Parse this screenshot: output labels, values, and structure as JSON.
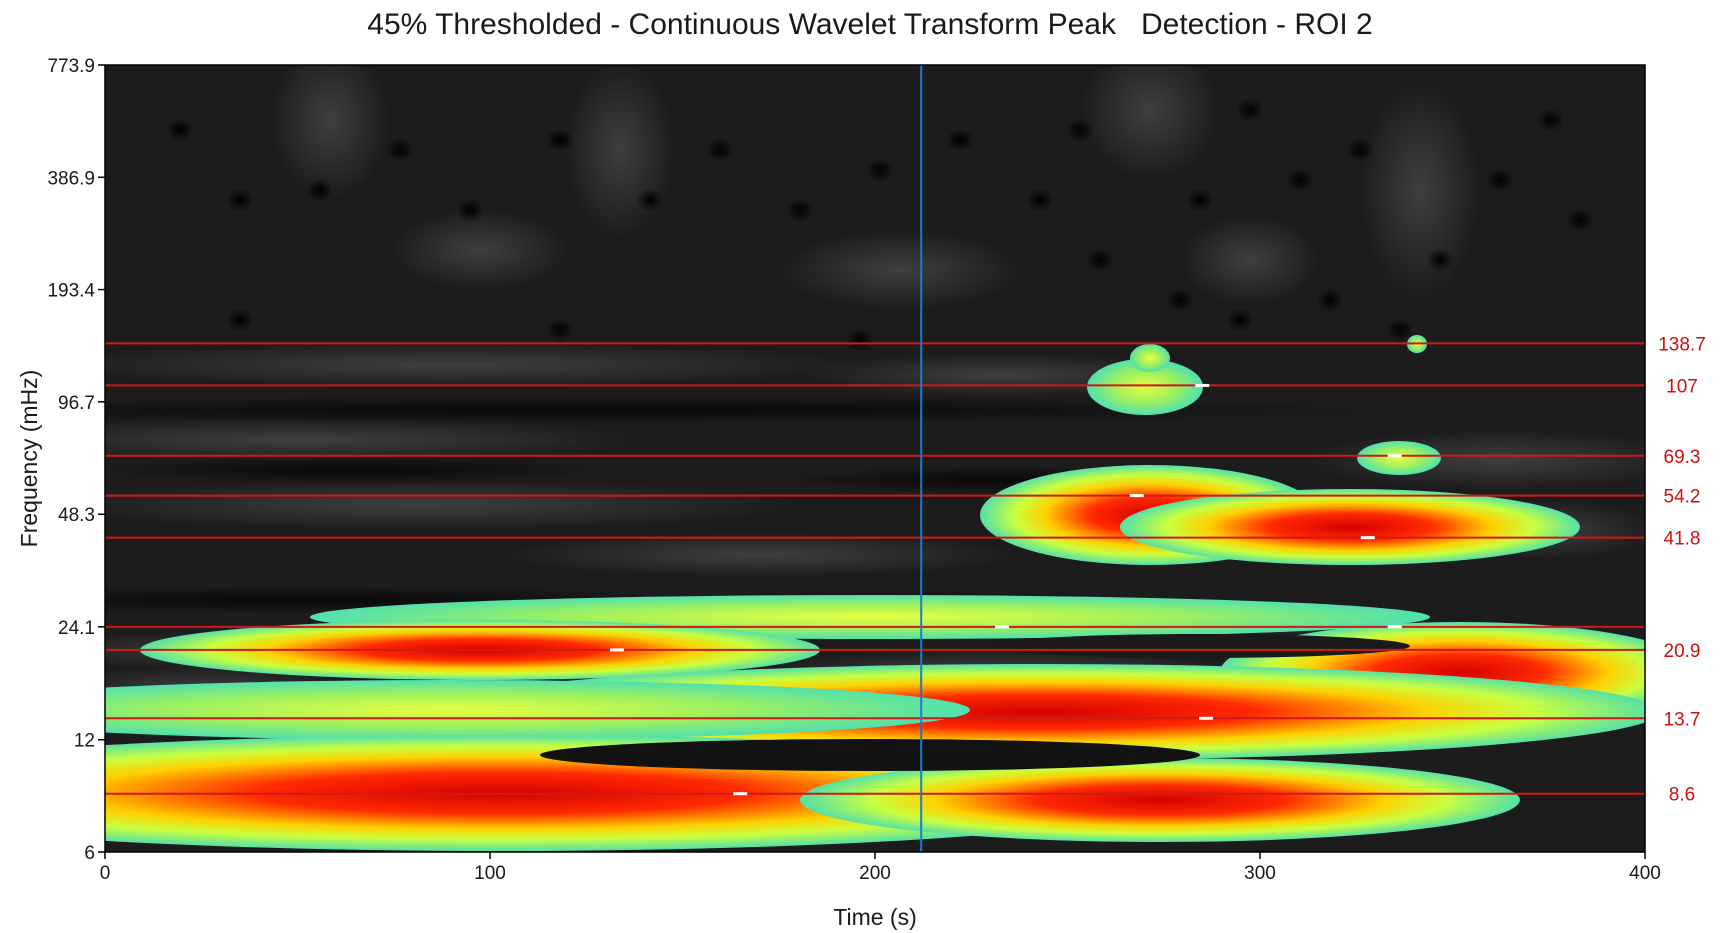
{
  "chart_data": {
    "type": "heatmap",
    "title": "45% Thresholded - Continuous Wavelet Transform Peak   Detection - ROI 2",
    "xlabel": "Time (s)",
    "ylabel": "Frequency (mHz)",
    "xlim": [
      0,
      400
    ],
    "ylim": [
      6,
      773.9
    ],
    "yscale": "log2",
    "x_ticks": [
      "0",
      "100",
      "200",
      "300",
      "400"
    ],
    "y_ticks": [
      "773.9",
      "386.9",
      "193.4",
      "96.7",
      "48.3",
      "24.1",
      "12",
      "6"
    ],
    "colormap": "gray background below threshold; cyan-green-yellow-red above 45% threshold",
    "marker_time": 212,
    "detected_peaks": [
      {
        "frequency": 138.7,
        "label": "138.7"
      },
      {
        "frequency": 107,
        "label": "107"
      },
      {
        "frequency": 69.3,
        "label": "69.3"
      },
      {
        "frequency": 54.2,
        "label": "54.2"
      },
      {
        "frequency": 41.8,
        "label": "41.8"
      },
      {
        "frequency": 24.1,
        "label": ""
      },
      {
        "frequency": 20.9,
        "label": "20.9"
      },
      {
        "frequency": 13.7,
        "label": "13.7"
      },
      {
        "frequency": 8.6,
        "label": "8.6"
      }
    ],
    "peak_markers": [
      {
        "time": 133,
        "frequency": 20.9
      },
      {
        "time": 165,
        "frequency": 8.6
      },
      {
        "time": 233,
        "frequency": 24.1
      },
      {
        "time": 268,
        "frequency": 54.2
      },
      {
        "time": 285,
        "frequency": 107
      },
      {
        "time": 328,
        "frequency": 41.8
      },
      {
        "time": 335,
        "frequency": 24.1
      },
      {
        "time": 335,
        "frequency": 69.3
      },
      {
        "time": 286,
        "frequency": 13.7
      }
    ],
    "grid": false,
    "legend": "none",
    "colors": {
      "peak_line": "#d01818",
      "marker_line": "#1f78d1",
      "peak_label": "#cc1111"
    }
  }
}
